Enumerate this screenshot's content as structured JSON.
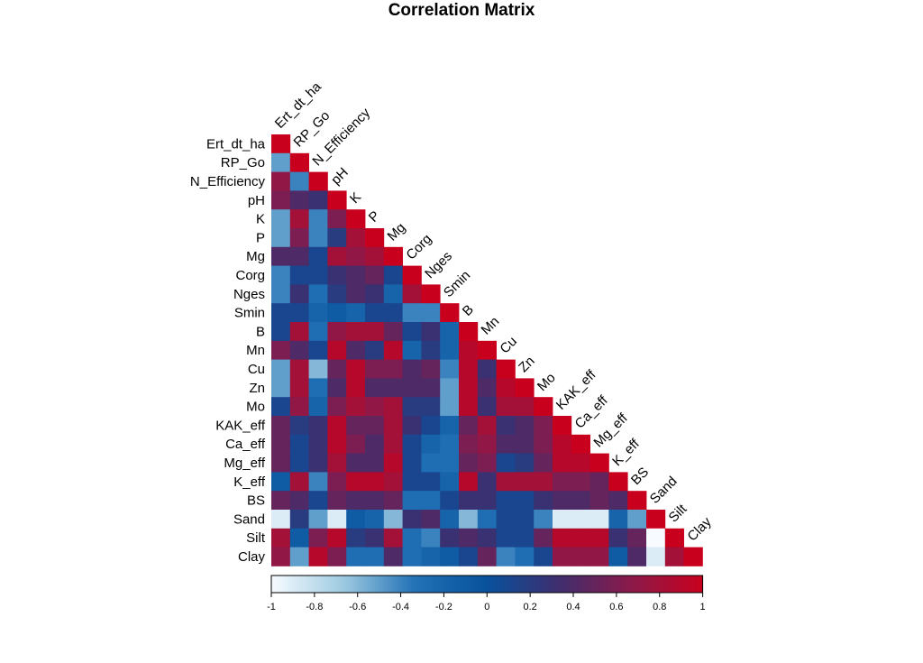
{
  "chart_data": {
    "type": "heatmap",
    "title": "Correlation Matrix",
    "layout": "lower-triangle",
    "variables": [
      "Ert_dt_ha",
      "RP_Go",
      "N_Efficiency",
      "pH",
      "K",
      "P",
      "Mg",
      "Corg",
      "Nges",
      "Smin",
      "B",
      "Mn",
      "Cu",
      "Zn",
      "Mo",
      "KAK_eff",
      "Ca_eff",
      "Mg_eff",
      "K_eff",
      "BS",
      "Sand",
      "Silt",
      "Clay"
    ],
    "values": [
      [
        1
      ],
      [
        -0.5,
        1
      ],
      [
        0.7,
        -0.4,
        1
      ],
      [
        0.6,
        0.4,
        0.3,
        1
      ],
      [
        -0.5,
        0.8,
        -0.4,
        0.6,
        1
      ],
      [
        -0.5,
        0.6,
        -0.4,
        0.2,
        0.8,
        1
      ],
      [
        0.4,
        0.4,
        0.1,
        0.8,
        0.7,
        0.8,
        1
      ],
      [
        -0.4,
        0.1,
        0.1,
        0.3,
        0.4,
        0.5,
        0.1,
        1
      ],
      [
        -0.4,
        0.3,
        -0.3,
        0.2,
        0.4,
        0.3,
        -0.2,
        0.8,
        1
      ],
      [
        0.1,
        0.1,
        -0.2,
        -0.1,
        -0.2,
        0.1,
        0.1,
        -0.4,
        -0.4,
        1
      ],
      [
        0.1,
        0.8,
        -0.3,
        0.7,
        0.8,
        0.8,
        0.5,
        0.1,
        0.3,
        -0.2,
        1
      ],
      [
        0.6,
        0.4,
        0.1,
        0.9,
        0.4,
        0.2,
        0.9,
        -0.2,
        0.2,
        -0.2,
        0.9,
        1
      ],
      [
        -0.5,
        0.8,
        -0.6,
        0.5,
        0.9,
        0.6,
        0.6,
        0.4,
        0.5,
        -0.4,
        0.9,
        0.3,
        1
      ],
      [
        -0.5,
        0.8,
        -0.3,
        0.4,
        0.9,
        0.4,
        0.4,
        0.4,
        0.4,
        -0.5,
        0.9,
        0.4,
        0.9,
        1
      ],
      [
        0.1,
        0.7,
        -0.2,
        0.6,
        0.8,
        0.7,
        0.8,
        0.2,
        0.2,
        -0.5,
        0.9,
        0.3,
        0.8,
        0.8,
        1
      ],
      [
        0.5,
        0.2,
        0.3,
        0.9,
        0.5,
        0.5,
        0.8,
        0.3,
        0.1,
        -0.2,
        0.5,
        0.8,
        0.3,
        0.4,
        0.6,
        1
      ],
      [
        0.5,
        0.1,
        0.3,
        0.9,
        0.6,
        0.4,
        0.8,
        0.1,
        -0.2,
        -0.3,
        0.6,
        0.7,
        0.4,
        0.4,
        0.6,
        0.9,
        1
      ],
      [
        0.5,
        0.1,
        0.3,
        0.8,
        0.4,
        0.4,
        0.9,
        0.1,
        -0.3,
        -0.3,
        0.5,
        0.6,
        0.1,
        0.2,
        0.5,
        0.9,
        0.9,
        1
      ],
      [
        -0.1,
        0.8,
        -0.4,
        0.6,
        0.9,
        0.9,
        0.8,
        0.1,
        0.1,
        -0.2,
        0.9,
        0.3,
        0.8,
        0.8,
        0.8,
        0.6,
        0.6,
        0.5,
        1
      ],
      [
        0.5,
        0.4,
        0.1,
        0.5,
        0.4,
        0.4,
        0.5,
        -0.3,
        -0.3,
        0.1,
        0.3,
        0.3,
        0.1,
        0.1,
        0.3,
        0.4,
        0.4,
        0.5,
        0.4,
        1
      ],
      [
        -0.9,
        0.2,
        -0.5,
        -0.9,
        -0.1,
        -0.2,
        -0.6,
        0.3,
        0.4,
        -0.2,
        -0.6,
        -0.3,
        0.1,
        0.1,
        -0.4,
        -0.9,
        -0.9,
        -0.9,
        -0.2,
        -0.5,
        1
      ],
      [
        0.8,
        -0.1,
        0.6,
        0.9,
        0.2,
        0.3,
        0.8,
        -0.3,
        -0.4,
        0.3,
        0.4,
        0.3,
        0.1,
        0.1,
        0.5,
        0.9,
        0.9,
        0.9,
        0.3,
        0.5,
        -1,
        1
      ],
      [
        0.7,
        -0.5,
        0.9,
        0.6,
        -0.3,
        -0.3,
        0.4,
        -0.3,
        -0.2,
        -0.1,
        0.1,
        0.5,
        -0.4,
        -0.3,
        0.1,
        0.7,
        0.7,
        0.7,
        -0.1,
        0.4,
        -0.9,
        0.8,
        1
      ]
    ],
    "colorbar": {
      "min": -1,
      "max": 1,
      "ticks": [
        -1,
        -0.8,
        -0.6,
        -0.4,
        -0.2,
        0,
        0.2,
        0.4,
        0.6,
        0.8,
        1
      ],
      "tick_labels": [
        "-1",
        "-0.8",
        "-0.6",
        "-0.4",
        "-0.2",
        "0",
        "0.2",
        "0.4",
        "0.6",
        "0.8",
        "1"
      ],
      "colors": [
        "#f7fbff",
        "#9ecae1",
        "#2171b5",
        "#08519c",
        "#3f2e6e",
        "#8b1a4a",
        "#c8001e"
      ]
    }
  }
}
